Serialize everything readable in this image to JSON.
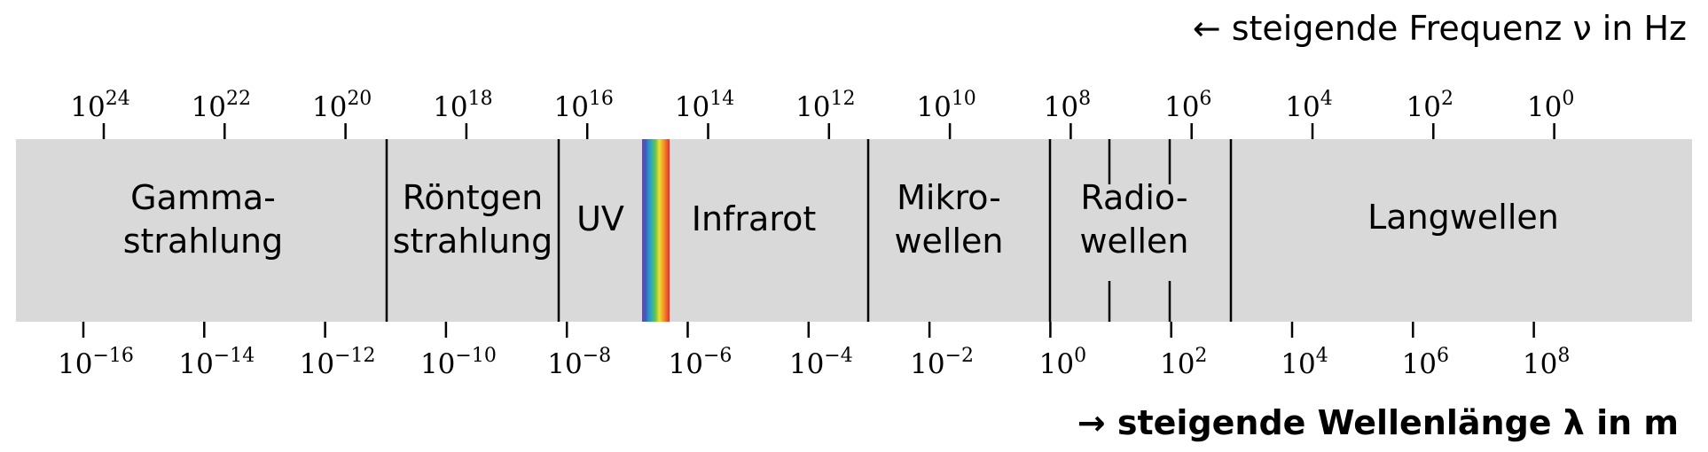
{
  "title_frequency": "← steigende Frequenz ν in Hz",
  "title_wavelength": "→ steigende Wellenlänge λ in m",
  "tick_base": "10",
  "frequency_exponents": [
    "24",
    "22",
    "20",
    "18",
    "16",
    "14",
    "12",
    "10",
    "8",
    "6",
    "4",
    "2",
    "0"
  ],
  "wavelength_exponents": [
    "−16",
    "−14",
    "−12",
    "−10",
    "−8",
    "−6",
    "−4",
    "−2",
    "0",
    "2",
    "4",
    "6",
    "8"
  ],
  "regions": [
    {
      "id": "gamma",
      "lines": [
        "Gamma-",
        "strahlung"
      ]
    },
    {
      "id": "xray",
      "lines": [
        "Röntgen",
        "strahlung"
      ]
    },
    {
      "id": "uv",
      "lines": [
        "UV"
      ]
    },
    {
      "id": "infrared",
      "lines": [
        "Infrarot"
      ]
    },
    {
      "id": "microwave",
      "lines": [
        "Mikro-",
        "wellen"
      ]
    },
    {
      "id": "radio",
      "lines": [
        "Radio-",
        "wellen"
      ]
    },
    {
      "id": "longwave",
      "lines": [
        "Langwellen"
      ]
    }
  ],
  "colors": {
    "band": "#d9d9d9",
    "line": "#000000",
    "text": "#000000",
    "visible_spectrum": [
      "#6a4c9c",
      "#3c5db8",
      "#2f8fd6",
      "#2fb89a",
      "#7ac143",
      "#e8e23a",
      "#f5a623",
      "#ee6a2c",
      "#e0312b"
    ]
  }
}
